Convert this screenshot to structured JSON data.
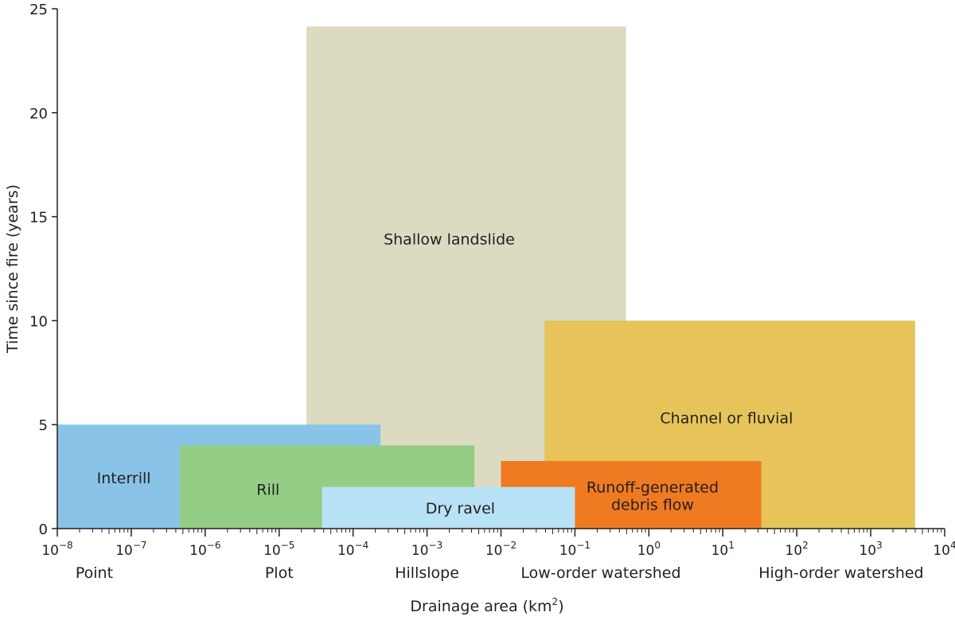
{
  "chart_data": {
    "type": "area",
    "xscale": "log",
    "xlabel": "Drainage area (km²)",
    "xlabel_base": "Drainage area (km",
    "xlabel_sup": "2",
    "xlabel_end": ")",
    "ylabel": "Time since fire (years)",
    "xlim_log10": [
      -8,
      4
    ],
    "ylim": [
      0,
      25
    ],
    "yticks": [
      0,
      5,
      10,
      15,
      20,
      25
    ],
    "xtick_exponents": [
      "−8",
      "−7",
      "−6",
      "−5",
      "−4",
      "−3",
      "−2",
      "−1",
      "0",
      "1",
      "2",
      "3",
      "4"
    ],
    "scale_labels": [
      {
        "label": "Point",
        "at_log10": -7.5
      },
      {
        "label": "Plot",
        "at_log10": -5.0
      },
      {
        "label": "Hillslope",
        "at_log10": -3.0
      },
      {
        "label": "Low-order watershed",
        "at_log10": -0.65
      },
      {
        "label": "High-order watershed",
        "at_log10": 2.6
      }
    ],
    "regions": [
      {
        "name": "Shallow landslide",
        "x_log10": [
          -4.63,
          -0.31
        ],
        "y": [
          0,
          24.15
        ],
        "color": "#dcdac0",
        "label_at": [
          -2.7,
          13.9
        ]
      },
      {
        "name": "Channel or fluvial",
        "x_log10": [
          -1.41,
          3.6
        ],
        "y": [
          0,
          10
        ],
        "color": "#e6c45a",
        "label_at": [
          1.05,
          5.3
        ]
      },
      {
        "name": "Interrill",
        "x_log10": [
          -8,
          -3.63
        ],
        "y": [
          0,
          5
        ],
        "color": "#89c4e8",
        "label_at": [
          -7.1,
          2.4
        ]
      },
      {
        "name": "Rill",
        "x_log10": [
          -6.34,
          -2.36
        ],
        "y": [
          0,
          4
        ],
        "color": "#94cd85",
        "label_at": [
          -5.15,
          1.85
        ]
      },
      {
        "name": "Runoff-generated debris flow",
        "lines": [
          "Runoff-generated",
          "debris flow"
        ],
        "x_log10": [
          -2,
          1.52
        ],
        "y": [
          0,
          3.25
        ],
        "color": "#f07a22",
        "label_at": [
          0.05,
          1.55
        ]
      },
      {
        "name": "Dry ravel",
        "x_log10": [
          -4.42,
          -1
        ],
        "y": [
          0,
          2
        ],
        "color": "#b8e2f6",
        "label_at": [
          -2.55,
          0.95
        ]
      }
    ]
  }
}
